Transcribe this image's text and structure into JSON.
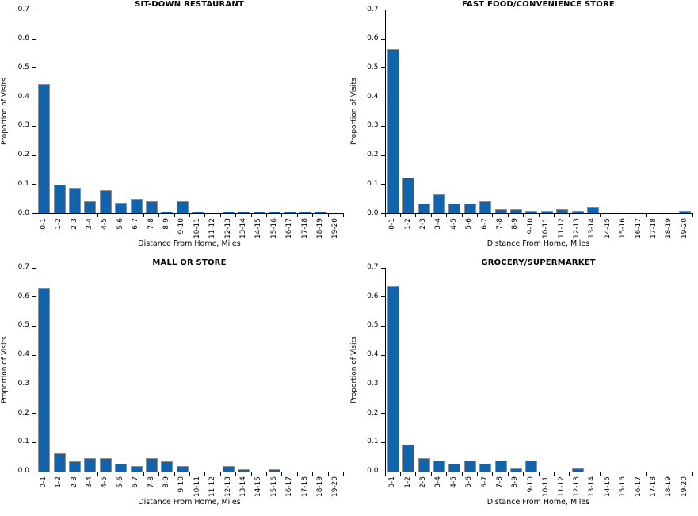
{
  "figure": {
    "background": "#ffffff",
    "text_color": "#000000",
    "axis_color": "#000000",
    "bar_fill": "#1164ab",
    "bar_border": "#909090"
  },
  "chart_data": [
    {
      "type": "bar",
      "title": "SIT-DOWN RESTAURANT",
      "xlabel": "Distance From Home, Miles",
      "ylabel": "Proportion of Visits",
      "ylim": [
        0,
        0.7
      ],
      "yticks": [
        0.0,
        0.1,
        0.2,
        0.3,
        0.4,
        0.5,
        0.6,
        0.7
      ],
      "grid": false,
      "categories": [
        "0-1",
        "1-2",
        "2-3",
        "3-4",
        "4-5",
        "5-6",
        "6-7",
        "7-8",
        "8-9",
        "9-10",
        "10-11",
        "11-12",
        "12-13",
        "13-14",
        "14-15",
        "15-16",
        "16-17",
        "17-18",
        "18-19",
        "19-20"
      ],
      "values": [
        0.445,
        0.097,
        0.086,
        0.04,
        0.08,
        0.035,
        0.05,
        0.04,
        0.005,
        0.04,
        0.005,
        0,
        0.005,
        0.005,
        0.005,
        0.005,
        0.005,
        0.005,
        0.005,
        0
      ]
    },
    {
      "type": "bar",
      "title": "FAST FOOD/CONVENIENCE STORE",
      "xlabel": "Distance From Home, Miles",
      "ylabel": "Proportion of Visits",
      "ylim": [
        0,
        0.7
      ],
      "yticks": [
        0.0,
        0.1,
        0.2,
        0.3,
        0.4,
        0.5,
        0.6,
        0.7
      ],
      "grid": false,
      "categories": [
        "0-1",
        "1-2",
        "2-3",
        "3-4",
        "4-5",
        "5-6",
        "6-7",
        "7-8",
        "8-9",
        "9-10",
        "10-11",
        "11-12",
        "12-13",
        "13-14",
        "14-15",
        "15-16",
        "16-17",
        "17-18",
        "18-19",
        "19-20"
      ],
      "values": [
        0.565,
        0.122,
        0.032,
        0.065,
        0.032,
        0.032,
        0.04,
        0.015,
        0.015,
        0.008,
        0.008,
        0.015,
        0.008,
        0.023,
        0,
        0,
        0,
        0,
        0,
        0.008
      ]
    },
    {
      "type": "bar",
      "title": "MALL OR STORE",
      "xlabel": "Distance From Home, Miles",
      "ylabel": "Proportion of Visits",
      "ylim": [
        0,
        0.7
      ],
      "yticks": [
        0.0,
        0.1,
        0.2,
        0.3,
        0.4,
        0.5,
        0.6,
        0.7
      ],
      "grid": false,
      "categories": [
        "0-1",
        "1-2",
        "2-3",
        "3-4",
        "4-5",
        "5-6",
        "6-7",
        "7-8",
        "8-9",
        "9-10",
        "10-11",
        "11-12",
        "12-13",
        "13-14",
        "14-15",
        "15-16",
        "16-17",
        "17-18",
        "18-19",
        "19-20"
      ],
      "values": [
        0.63,
        0.062,
        0.035,
        0.044,
        0.044,
        0.027,
        0.017,
        0.044,
        0.035,
        0.017,
        0,
        0,
        0.017,
        0.008,
        0,
        0.008,
        0,
        0,
        0,
        0
      ]
    },
    {
      "type": "bar",
      "title": "GROCERY/SUPERMARKET",
      "xlabel": "Distance From Home, Miles",
      "ylabel": "Proportion of Visits",
      "ylim": [
        0,
        0.7
      ],
      "yticks": [
        0.0,
        0.1,
        0.2,
        0.3,
        0.4,
        0.5,
        0.6,
        0.7
      ],
      "grid": false,
      "categories": [
        "0-1",
        "1-2",
        "2-3",
        "3-4",
        "4-5",
        "5-6",
        "6-7",
        "7-8",
        "8-9",
        "9-10",
        "10-11",
        "11-12",
        "12-13",
        "13-14",
        "14-15",
        "15-16",
        "16-17",
        "17-18",
        "18-19",
        "19-20"
      ],
      "values": [
        0.635,
        0.092,
        0.046,
        0.037,
        0.027,
        0.037,
        0.027,
        0.037,
        0.009,
        0.037,
        0,
        0,
        0.009,
        0,
        0,
        0,
        0,
        0,
        0,
        0
      ]
    }
  ]
}
